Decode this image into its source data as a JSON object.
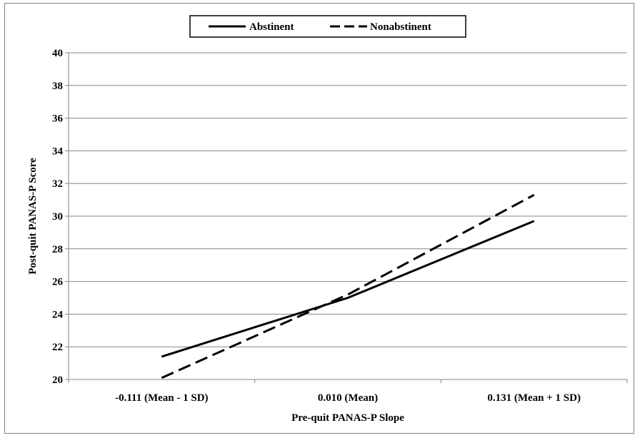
{
  "chart_data": {
    "type": "line",
    "categories": [
      "-0.111 (Mean - 1 SD)",
      "0.010 (Mean)",
      "0.131 (Mean + 1 SD)"
    ],
    "series": [
      {
        "name": "Abstinent",
        "values": [
          21.4,
          25.0,
          29.7
        ],
        "style": "solid"
      },
      {
        "name": "Nonabstinent",
        "values": [
          20.1,
          25.2,
          31.3
        ],
        "style": "dashed"
      }
    ],
    "xlabel": "Pre-quit PANAS-P Slope",
    "ylabel": "Post-quit PANAS-P Score",
    "ylim": [
      20,
      40
    ],
    "yticks": [
      "20",
      "22",
      "24",
      "26",
      "28",
      "30",
      "32",
      "34",
      "36",
      "38",
      "40"
    ],
    "grid": "horizontal",
    "legend_position": "top-center",
    "colors": {
      "line": "#000000",
      "grid": "#868686",
      "axis": "#868686"
    }
  }
}
